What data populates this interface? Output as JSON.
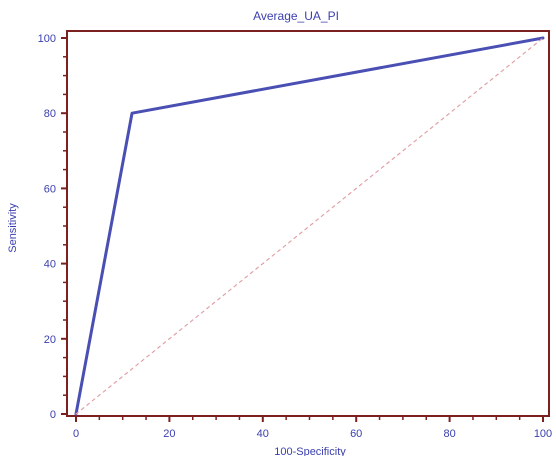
{
  "chart_data": {
    "type": "line",
    "title": "Average_UA_PI",
    "xlabel": "100-Specificity",
    "ylabel": "Sensitivity",
    "xlim": [
      0,
      100
    ],
    "ylim": [
      0,
      100
    ],
    "x_ticks": [
      0,
      20,
      40,
      60,
      80,
      100
    ],
    "y_ticks": [
      0,
      20,
      40,
      60,
      80,
      100
    ],
    "grid": false,
    "series": [
      {
        "values": [
          {
            "x": 0,
            "y": 0
          },
          {
            "x": 12,
            "y": 80
          },
          {
            "x": 100,
            "y": 100
          }
        ],
        "color": "#4a4fb3"
      },
      {
        "values": [
          {
            "x": 0,
            "y": 0
          },
          {
            "x": 100,
            "y": 100
          }
        ],
        "color": "#e1a1a7",
        "dashed": true
      }
    ]
  },
  "colors": {
    "frame": "#7b1f1f",
    "text": "#3b3fae",
    "curve": "#4a4fb3",
    "diagonal": "#e1a1a7"
  }
}
